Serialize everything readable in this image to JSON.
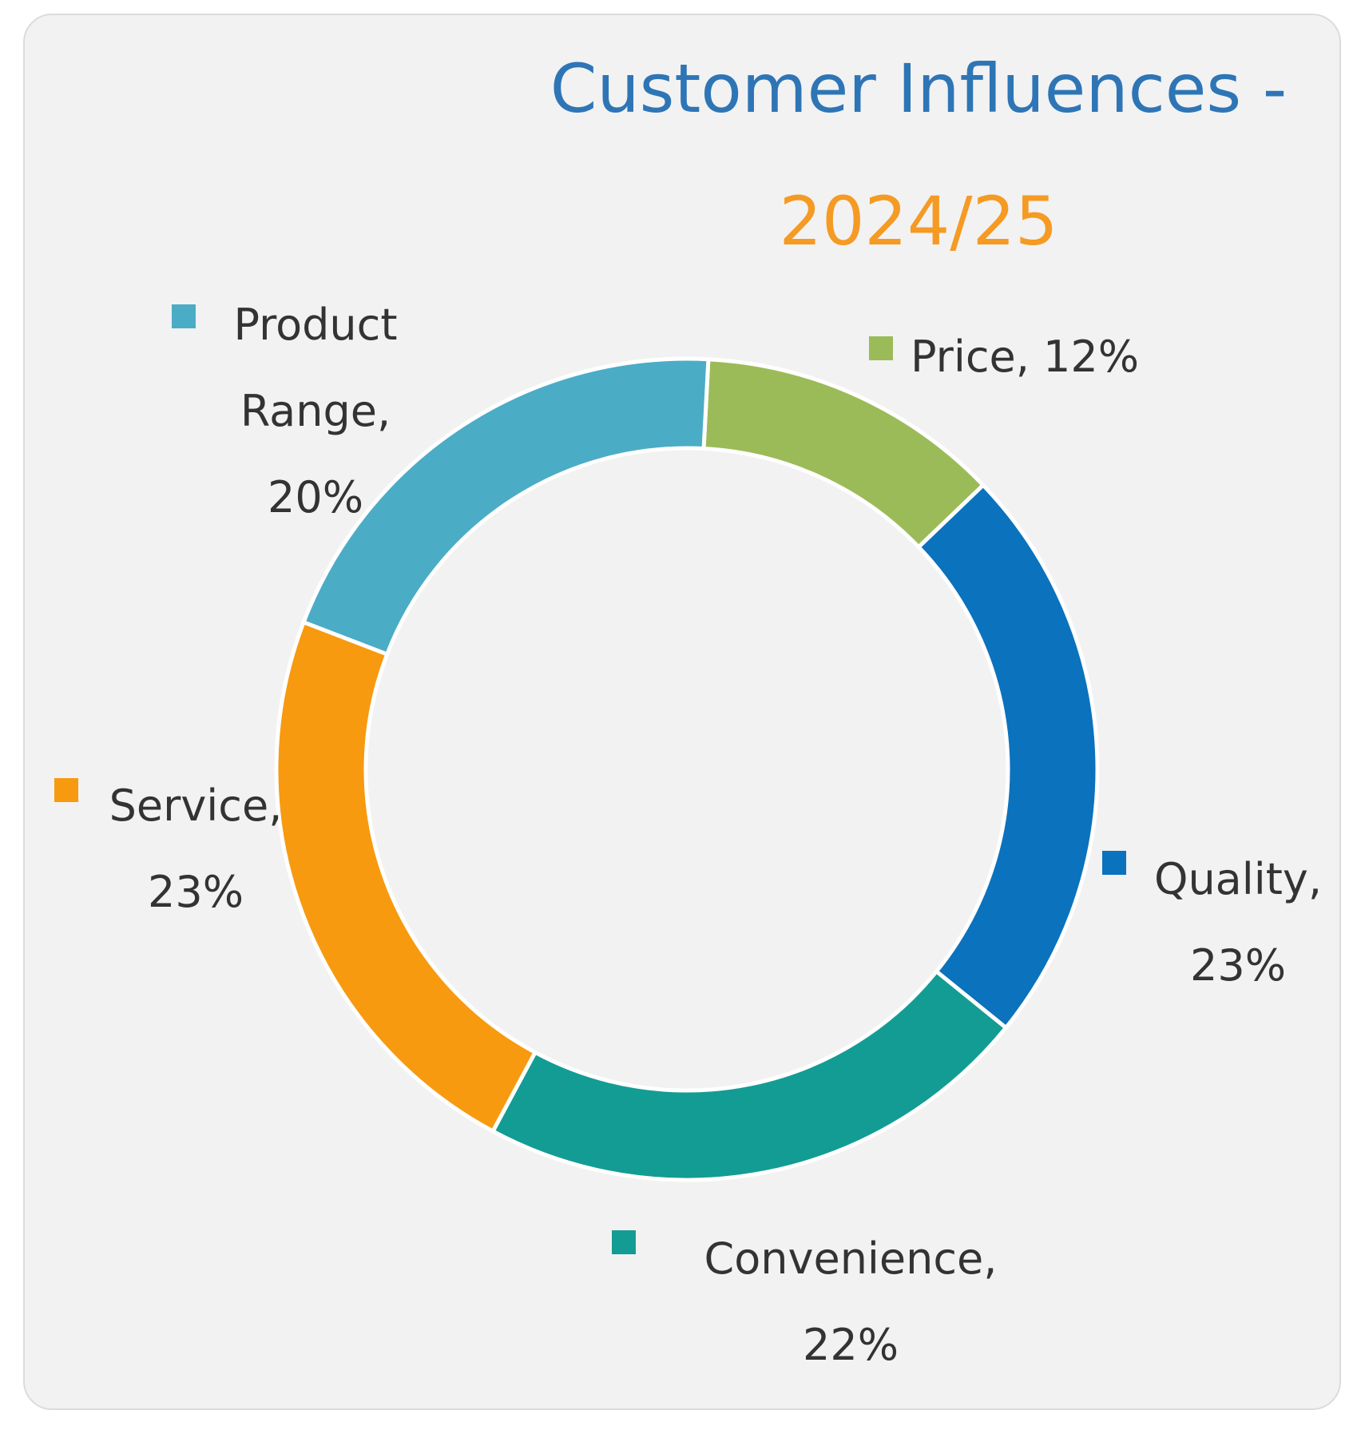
{
  "chart_data": {
    "type": "donut",
    "title": "Customer Influences -",
    "subtitle": "2024/25",
    "labels": [
      "Price, 12%",
      "Quality, 23%",
      "Convenience, 22%",
      "Service, 23%",
      "Product Range, 20%"
    ],
    "values": [
      12,
      23,
      22,
      23,
      20
    ],
    "colors": [
      "#9bbb59",
      "#0b72bd",
      "#139c94",
      "#f79a10",
      "#4bacc6"
    ]
  }
}
